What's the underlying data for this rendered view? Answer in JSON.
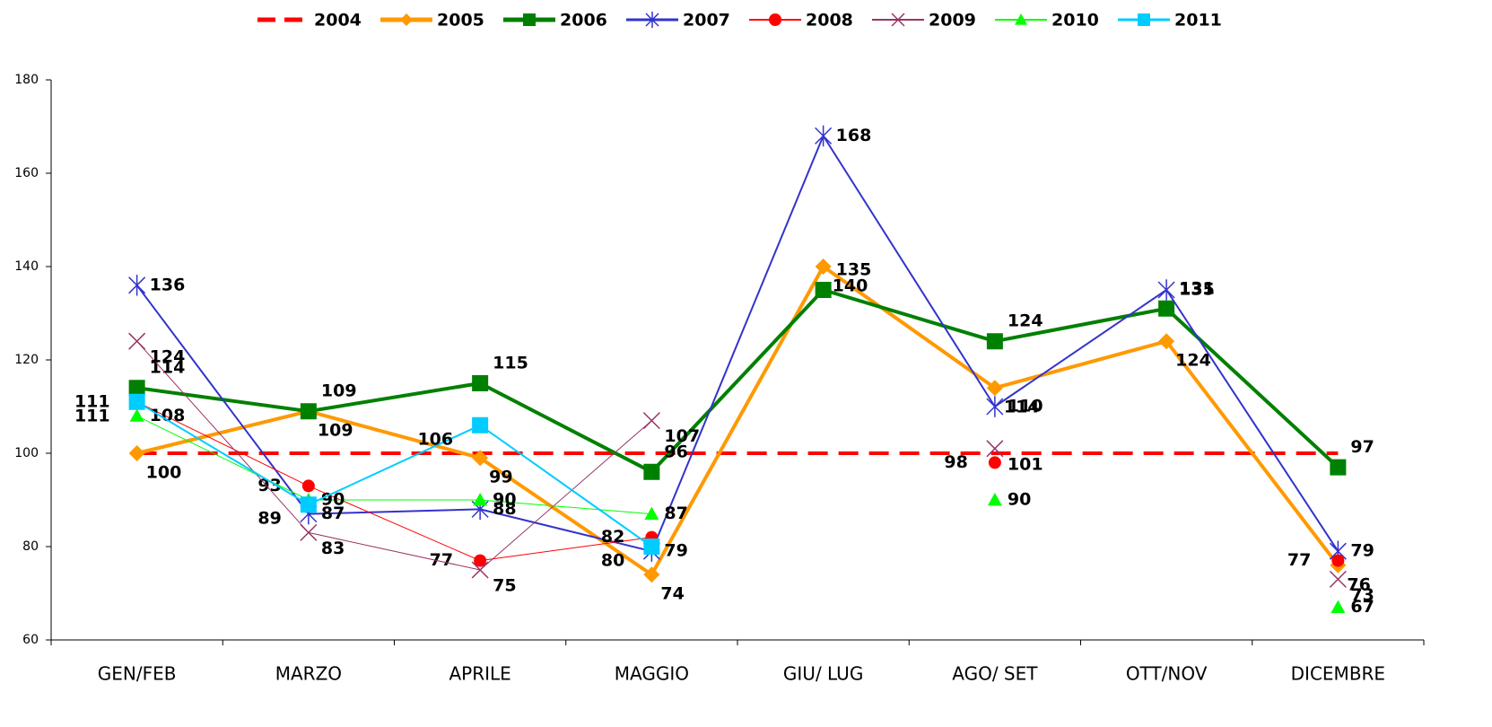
{
  "chart_data": {
    "type": "line",
    "categories": [
      "GEN/FEB",
      "MARZO",
      "APRILE",
      "MAGGIO",
      "GIU/ LUG",
      "AGO/ SET",
      "OTT/NOV",
      "DICEMBRE"
    ],
    "ylim": [
      60,
      180
    ],
    "yticks": [
      60,
      80,
      100,
      120,
      140,
      160,
      180
    ],
    "series": [
      {
        "name": "2004",
        "color": "#ff0000",
        "line_style": "dashed",
        "line_width": 4,
        "marker": "none",
        "values": [
          100,
          100,
          100,
          100,
          100,
          100,
          100,
          100
        ]
      },
      {
        "name": "2005",
        "color": "#ff9900",
        "line_style": "solid",
        "line_width": 4,
        "marker": "diamond",
        "values": [
          100,
          109,
          99,
          74,
          140,
          114,
          124,
          76
        ]
      },
      {
        "name": "2006",
        "color": "#008000",
        "line_style": "solid",
        "line_width": 4,
        "marker": "square",
        "values": [
          114,
          109,
          115,
          96,
          135,
          124,
          131,
          97
        ]
      },
      {
        "name": "2007",
        "color": "#3333cc",
        "line_style": "solid",
        "line_width": 2,
        "marker": "star",
        "values": [
          136,
          87,
          88,
          79,
          168,
          110,
          135,
          79
        ]
      },
      {
        "name": "2008",
        "color": "#ff0000",
        "line_style": "solid",
        "line_width": 1,
        "marker": "circle",
        "values": [
          111,
          93,
          77,
          82,
          null,
          98,
          null,
          77
        ]
      },
      {
        "name": "2009",
        "color": "#993366",
        "line_style": "solid",
        "line_width": 1,
        "marker": "x",
        "values": [
          124,
          83,
          75,
          107,
          null,
          101,
          null,
          73
        ]
      },
      {
        "name": "2010",
        "color": "#00ff00",
        "line_style": "solid",
        "line_width": 1,
        "marker": "triangle",
        "values": [
          108,
          90,
          90,
          87,
          null,
          90,
          null,
          67
        ]
      },
      {
        "name": "2011",
        "color": "#00ccff",
        "line_style": "solid",
        "line_width": 2,
        "marker": "square",
        "values": [
          111,
          89,
          106,
          80,
          null,
          null,
          null,
          null
        ]
      }
    ]
  }
}
